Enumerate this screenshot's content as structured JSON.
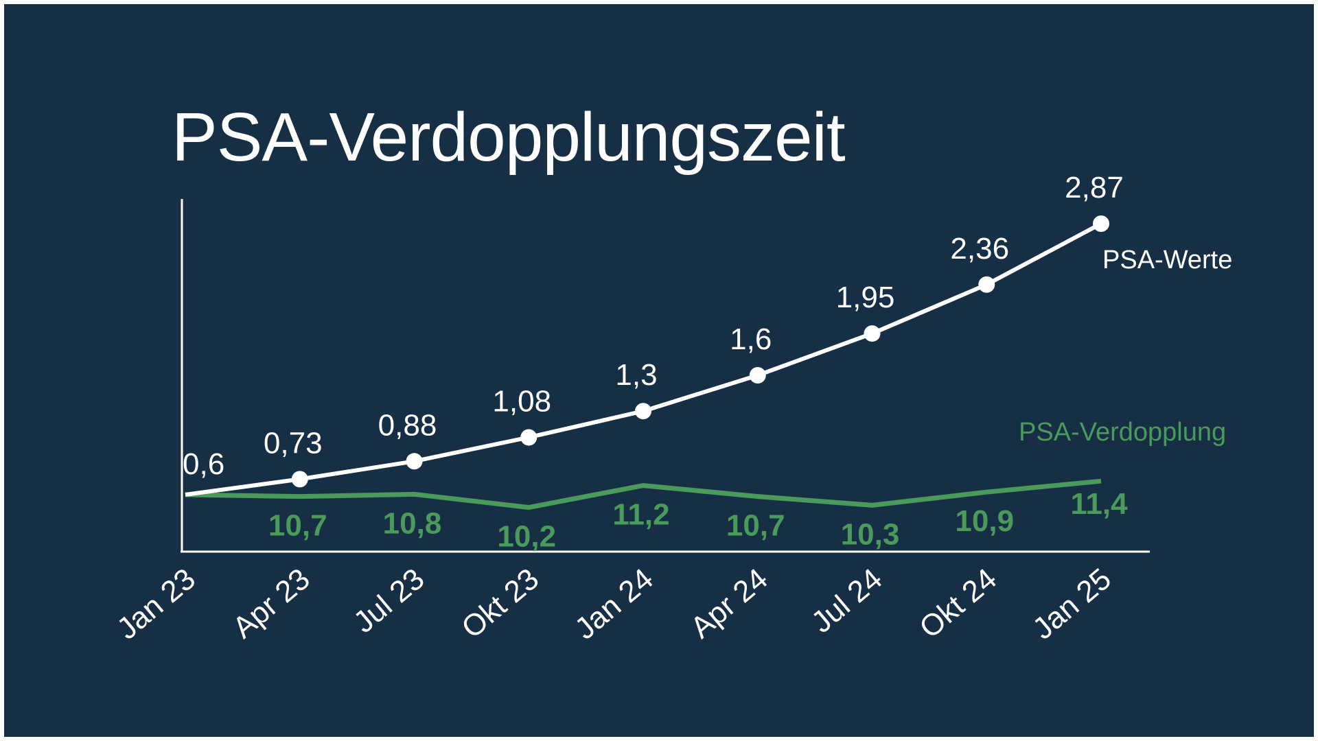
{
  "colors": {
    "background": "#172f45",
    "psa_values": "#ffffff",
    "psa_doubling": "#4a9a5c"
  },
  "chart_data": {
    "type": "line",
    "title": "PSA-Verdopplungszeit",
    "xlabel": "",
    "ylabel": "",
    "grid": false,
    "categories": [
      "Jan 23",
      "Apr 23",
      "Jul 23",
      "Okt 23",
      "Jan 24",
      "Apr 24",
      "Jul 24",
      "Okt 24",
      "Jan 25"
    ],
    "series": [
      {
        "name": "PSA-Werte",
        "values": [
          0.6,
          0.73,
          0.88,
          1.08,
          1.3,
          1.6,
          1.95,
          2.36,
          2.87
        ],
        "labels": [
          "0,6",
          "0,73",
          "0,88",
          "1,08",
          "1,3",
          "1,6",
          "1,95",
          "2,36",
          "2,87"
        ],
        "color": "#ffffff",
        "markers": true
      },
      {
        "name": "PSA-Verdopplung",
        "values": [
          null,
          10.7,
          10.8,
          10.2,
          11.2,
          10.7,
          10.3,
          10.9,
          11.4
        ],
        "labels": [
          "",
          "10,7",
          "10,8",
          "10,2",
          "11,2",
          "10,7",
          "10,3",
          "10,9",
          "11,4"
        ],
        "color": "#4a9a5c",
        "markers": false
      }
    ]
  }
}
